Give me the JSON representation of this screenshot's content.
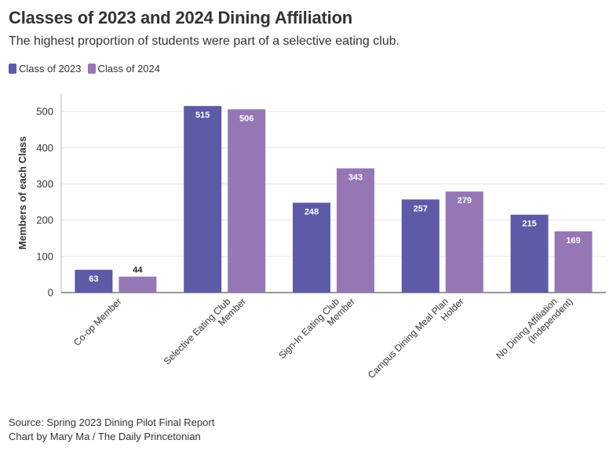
{
  "title": "Classes of 2023 and 2024 Dining Affiliation",
  "subtitle": "The highest proportion of students were part of a selective eating club.",
  "colors": {
    "class_2023": "#5d5aa8",
    "class_2024": "#9677b6",
    "grid": "#e6e6e6",
    "axis": "#333333"
  },
  "chart_data": {
    "type": "bar",
    "title": "Classes of 2023 and 2024 Dining Affiliation",
    "xlabel": "",
    "ylabel": "Members of each Class",
    "ylim": [
      0,
      550
    ],
    "yticks": [
      0,
      100,
      200,
      300,
      400,
      500
    ],
    "categories": [
      [
        "Co-op Member"
      ],
      [
        "Selective Eating Club",
        "Member"
      ],
      [
        "Sign-In Eating Club",
        "Member"
      ],
      [
        "Campus Dining Meal Plan",
        "Holder"
      ],
      [
        "No Dining Affiliation",
        "(Independent)"
      ]
    ],
    "series": [
      {
        "name": "Class of 2023",
        "values": [
          63,
          515,
          248,
          257,
          215
        ]
      },
      {
        "name": "Class of 2024",
        "values": [
          44,
          506,
          343,
          279,
          169
        ]
      }
    ],
    "legend_position": "top-left"
  },
  "footer": {
    "source": "Source: Spring 2023 Dining Pilot Final Report",
    "credit": "Chart by Mary Ma / The Daily Princetonian"
  }
}
